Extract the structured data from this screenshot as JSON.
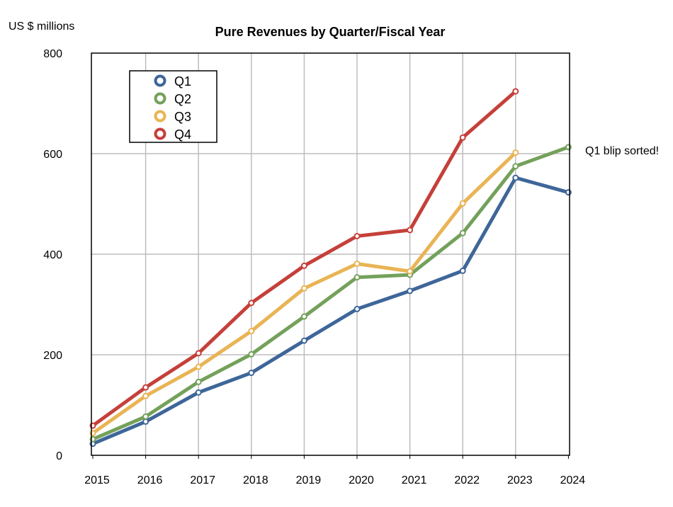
{
  "chart_data": {
    "type": "line",
    "title": "Pure Revenues by Quarter/Fiscal Year",
    "ylabel": "US $ millions",
    "xlabel": "",
    "annotation": "Q1 blip sorted!",
    "categories": [
      "2015",
      "2016",
      "2017",
      "2018",
      "2019",
      "2020",
      "2021",
      "2022",
      "2023",
      "2024"
    ],
    "ylim": [
      0,
      800
    ],
    "yticks": [
      0,
      200,
      400,
      600,
      800
    ],
    "grid": true,
    "legend_position": "top-left",
    "series": [
      {
        "name": "Q1",
        "color": "#3e6699",
        "values": [
          23,
          67,
          125,
          164,
          228,
          291,
          327,
          367,
          552,
          523
        ]
      },
      {
        "name": "Q2",
        "color": "#74a15a",
        "values": [
          32,
          77,
          146,
          201,
          276,
          354,
          359,
          442,
          575,
          613
        ]
      },
      {
        "name": "Q3",
        "color": "#e9b455",
        "values": [
          44,
          118,
          176,
          247,
          332,
          381,
          366,
          501,
          602,
          null
        ]
      },
      {
        "name": "Q4",
        "color": "#c5403a",
        "values": [
          59,
          135,
          203,
          303,
          377,
          436,
          448,
          632,
          724,
          null
        ]
      }
    ]
  }
}
